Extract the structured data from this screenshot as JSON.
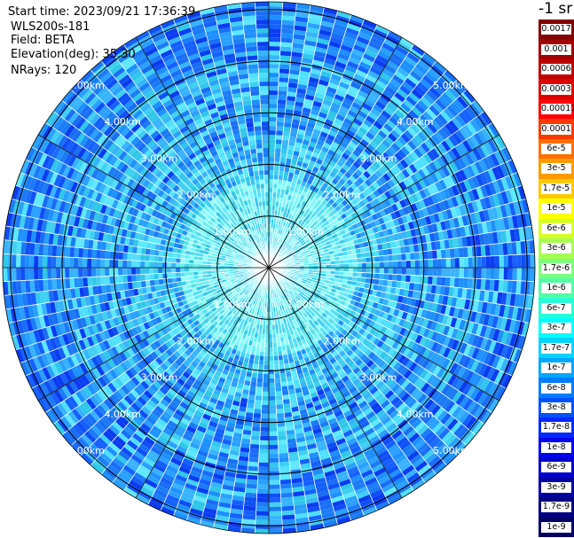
{
  "header": {
    "start_time": "Start time: 2023/09/21 17:36:39",
    "instrument": "WLS200s-181",
    "field": "Field: BETA",
    "elevation": "Elevation(deg): 35.30",
    "nrays": "NRays: 120"
  },
  "unit_label": "-1 sr",
  "rings": [
    {
      "km": 1,
      "label": "1.00km"
    },
    {
      "km": 2,
      "label": "2.00km"
    },
    {
      "km": 3,
      "label": "3.00km"
    },
    {
      "km": 4,
      "label": "4.00km"
    },
    {
      "km": 5,
      "label": "5.00km"
    }
  ],
  "max_range_km": 5.15,
  "colorbar": [
    {
      "label": "0.0017",
      "color": "#800000"
    },
    {
      "label": "0.001",
      "color": "#a00000"
    },
    {
      "label": "0.0006",
      "color": "#c00000"
    },
    {
      "label": "0.0003",
      "color": "#e00000"
    },
    {
      "label": "0.00017",
      "color": "#ff0000"
    },
    {
      "label": "0.0001",
      "color": "#ff3a00"
    },
    {
      "label": "6e-5",
      "color": "#ff7000"
    },
    {
      "label": "3e-5",
      "color": "#ff9a00"
    },
    {
      "label": "1.7e-5",
      "color": "#ffc800"
    },
    {
      "label": "1e-5",
      "color": "#ffff00"
    },
    {
      "label": "6e-6",
      "color": "#d6ff28"
    },
    {
      "label": "3e-6",
      "color": "#a6ff52"
    },
    {
      "label": "1.7e-6",
      "color": "#7cff7c"
    },
    {
      "label": "1e-6",
      "color": "#52ffa6"
    },
    {
      "label": "6e-7",
      "color": "#28ffd6"
    },
    {
      "label": "3e-7",
      "color": "#00ffff"
    },
    {
      "label": "1.7e-7",
      "color": "#00d4ff"
    },
    {
      "label": "1e-7",
      "color": "#00a8ff"
    },
    {
      "label": "6e-8",
      "color": "#007cff"
    },
    {
      "label": "3e-8",
      "color": "#0050ff"
    },
    {
      "label": "1.7e-8",
      "color": "#0028ff"
    },
    {
      "label": "1e-8",
      "color": "#0000f0"
    },
    {
      "label": "6e-9",
      "color": "#0000c8"
    },
    {
      "label": "3e-9",
      "color": "#0000a0"
    },
    {
      "label": "1.7e-9",
      "color": "#000080"
    },
    {
      "label": "1e-9",
      "color": "#000060"
    }
  ]
}
